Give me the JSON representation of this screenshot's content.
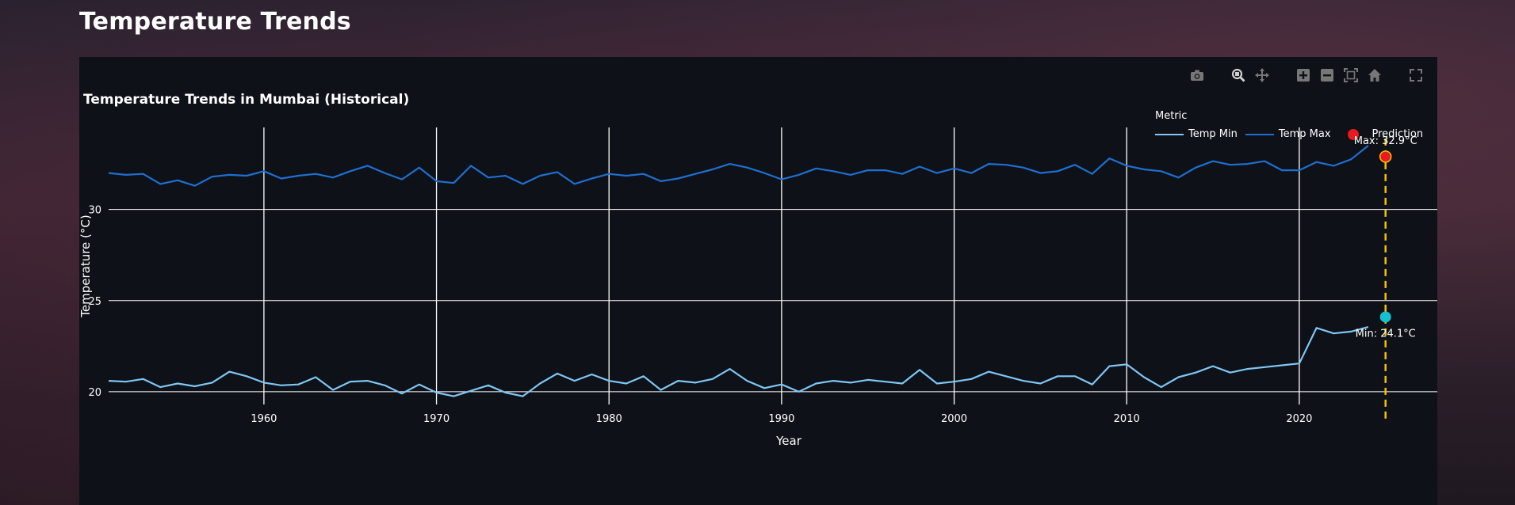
{
  "page": {
    "title": "Temperature Trends"
  },
  "toolbar": {
    "buttons": [
      {
        "name": "download-plot-icon",
        "label": "camera"
      },
      {
        "name": "zoom-icon",
        "label": "zoom"
      },
      {
        "name": "pan-icon",
        "label": "pan"
      },
      {
        "name": "zoom-in-icon",
        "label": "zoom in"
      },
      {
        "name": "zoom-out-icon",
        "label": "zoom out"
      },
      {
        "name": "autoscale-icon",
        "label": "autoscale"
      },
      {
        "name": "reset-axes-icon",
        "label": "home"
      },
      {
        "name": "fullscreen-icon",
        "label": "fullscreen"
      }
    ]
  },
  "colors": {
    "temp_min": "#7fc6f5",
    "temp_max": "#1f6fd1",
    "prediction": "#e8191f",
    "prediction_min": "#17becf",
    "prediction_line": "#f2c200",
    "grid": "#ffffff"
  },
  "chart_data": {
    "type": "line",
    "title": "Temperature Trends in Mumbai (Historical)",
    "xlabel": "Year",
    "ylabel": "Temperature (°C)",
    "xlim": [
      1951,
      2028
    ],
    "ylim": [
      19.3,
      34.5
    ],
    "xticks": [
      1960,
      1970,
      1980,
      1990,
      2000,
      2010,
      2020
    ],
    "yticks": [
      20,
      25,
      30
    ],
    "grid": true,
    "legend": {
      "title": "Metric",
      "position": "top-right",
      "entries": [
        "Temp Min",
        "Temp Max",
        "Prediction"
      ]
    },
    "series": [
      {
        "name": "Temp Max",
        "x": [
          1951,
          1952,
          1953,
          1954,
          1955,
          1956,
          1957,
          1958,
          1959,
          1960,
          1961,
          1962,
          1963,
          1964,
          1965,
          1966,
          1967,
          1968,
          1969,
          1970,
          1971,
          1972,
          1973,
          1974,
          1975,
          1976,
          1977,
          1978,
          1979,
          1980,
          1981,
          1982,
          1983,
          1984,
          1985,
          1986,
          1987,
          1988,
          1989,
          1990,
          1991,
          1992,
          1993,
          1994,
          1995,
          1996,
          1997,
          1998,
          1999,
          2000,
          2001,
          2002,
          2003,
          2004,
          2005,
          2006,
          2007,
          2008,
          2009,
          2010,
          2011,
          2012,
          2013,
          2014,
          2015,
          2016,
          2017,
          2018,
          2019,
          2020,
          2021,
          2022,
          2023,
          2024
        ],
        "values": [
          32.0,
          31.9,
          31.95,
          31.4,
          31.6,
          31.3,
          31.8,
          31.9,
          31.85,
          32.1,
          31.7,
          31.85,
          31.95,
          31.75,
          32.1,
          32.4,
          32.0,
          31.65,
          32.3,
          31.55,
          31.45,
          32.4,
          31.75,
          31.85,
          31.4,
          31.85,
          32.05,
          31.4,
          31.7,
          31.95,
          31.85,
          31.95,
          31.55,
          31.7,
          31.95,
          32.2,
          32.5,
          32.3,
          32.0,
          31.65,
          31.9,
          32.25,
          32.1,
          31.9,
          32.15,
          32.15,
          31.95,
          32.35,
          32.0,
          32.25,
          32.0,
          32.5,
          32.45,
          32.3,
          32.0,
          32.1,
          32.45,
          31.95,
          32.8,
          32.4,
          32.2,
          32.1,
          31.75,
          32.3,
          32.65,
          32.45,
          32.5,
          32.65,
          32.15,
          32.15,
          32.6,
          32.4,
          32.75,
          33.5
        ]
      },
      {
        "name": "Temp Min",
        "x": [
          1951,
          1952,
          1953,
          1954,
          1955,
          1956,
          1957,
          1958,
          1959,
          1960,
          1961,
          1962,
          1963,
          1964,
          1965,
          1966,
          1967,
          1968,
          1969,
          1970,
          1971,
          1972,
          1973,
          1974,
          1975,
          1976,
          1977,
          1978,
          1979,
          1980,
          1981,
          1982,
          1983,
          1984,
          1985,
          1986,
          1987,
          1988,
          1989,
          1990,
          1991,
          1992,
          1993,
          1994,
          1995,
          1996,
          1997,
          1998,
          1999,
          2000,
          2001,
          2002,
          2003,
          2004,
          2005,
          2006,
          2007,
          2008,
          2009,
          2010,
          2011,
          2012,
          2013,
          2014,
          2015,
          2016,
          2017,
          2018,
          2019,
          2020,
          2021,
          2022,
          2023,
          2024
        ],
        "values": [
          20.6,
          20.55,
          20.7,
          20.25,
          20.45,
          20.3,
          20.5,
          21.1,
          20.85,
          20.5,
          20.35,
          20.4,
          20.8,
          20.1,
          20.55,
          20.6,
          20.35,
          19.9,
          20.4,
          19.95,
          19.75,
          20.05,
          20.35,
          19.95,
          19.75,
          20.45,
          21.0,
          20.6,
          20.95,
          20.6,
          20.45,
          20.85,
          20.1,
          20.6,
          20.5,
          20.7,
          21.25,
          20.6,
          20.2,
          20.4,
          20.0,
          20.45,
          20.6,
          20.5,
          20.65,
          20.55,
          20.45,
          21.2,
          20.45,
          20.55,
          20.7,
          21.1,
          20.85,
          20.6,
          20.45,
          20.85,
          20.85,
          20.4,
          21.4,
          21.5,
          20.8,
          20.25,
          20.8,
          21.05,
          21.4,
          21.05,
          21.25,
          21.35,
          21.45,
          21.55,
          23.5,
          23.2,
          23.3,
          23.55
        ]
      }
    ],
    "prediction": {
      "name": "Prediction",
      "year": 2025,
      "max": 32.9,
      "min": 24.1,
      "max_label": "Max: 32.9°C",
      "min_label": "Min: 24.1°C"
    }
  }
}
